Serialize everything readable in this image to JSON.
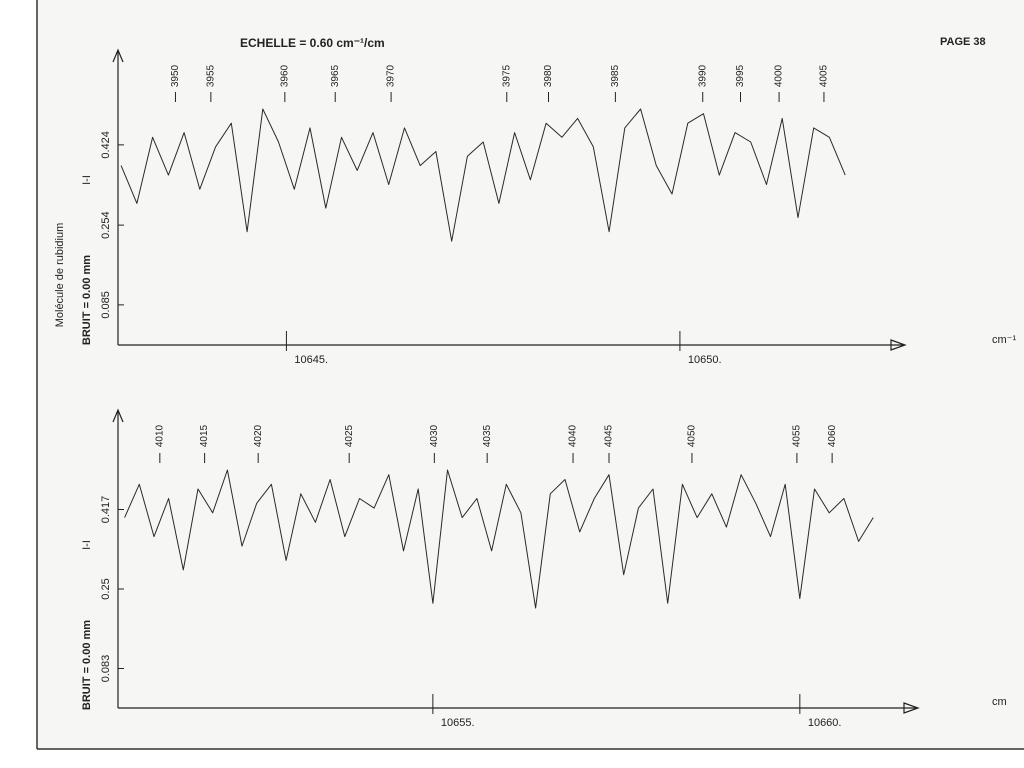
{
  "page": "PAGE 38",
  "chart_data": [
    {
      "type": "line",
      "title": "ECHELLE = 0.60 cm⁻¹/cm",
      "sublabel": "Molécule de rubidium",
      "ylabel": "BRUIT = 0.00 mm",
      "symbol": "I-I",
      "xlabel": "cm⁻¹",
      "color": "#2a2a2a",
      "x": [
        10642.9,
        10643.1,
        10643.3,
        10643.5,
        10643.7,
        10643.9,
        10644.1,
        10644.3,
        10644.5,
        10644.7,
        10644.9,
        10645.1,
        10645.3,
        10645.5,
        10645.7,
        10645.9,
        10646.1,
        10646.3,
        10646.5,
        10646.7,
        10646.9,
        10647.1,
        10647.3,
        10647.5,
        10647.7,
        10647.9,
        10648.1,
        10648.3,
        10648.5,
        10648.7,
        10648.9,
        10649.1,
        10649.3,
        10649.5,
        10649.7,
        10649.9,
        10650.1,
        10650.3,
        10650.5,
        10650.7,
        10650.9,
        10651.1,
        10651.3,
        10651.5,
        10651.7,
        10651.9,
        10652.1
      ],
      "values": [
        0.38,
        0.3,
        0.44,
        0.36,
        0.45,
        0.33,
        0.42,
        0.47,
        0.24,
        0.5,
        0.43,
        0.33,
        0.46,
        0.29,
        0.44,
        0.37,
        0.45,
        0.34,
        0.46,
        0.38,
        0.41,
        0.22,
        0.4,
        0.43,
        0.3,
        0.45,
        0.35,
        0.47,
        0.44,
        0.48,
        0.42,
        0.24,
        0.46,
        0.5,
        0.38,
        0.32,
        0.47,
        0.49,
        0.36,
        0.45,
        0.43,
        0.34,
        0.48,
        0.27,
        0.46,
        0.44,
        0.36
      ],
      "xlim": [
        10642.86,
        10652.86
      ],
      "ylim": [
        0.0,
        0.625
      ],
      "xticks": [
        {
          "value": 10645,
          "label": "10645."
        },
        {
          "value": 10650,
          "label": "10650."
        }
      ],
      "yticks": [
        0.085,
        0.254,
        0.424
      ],
      "line_labels": [
        {
          "x": 10643.59,
          "label": "3950"
        },
        {
          "x": 10644.04,
          "label": "3955"
        },
        {
          "x": 10644.98,
          "label": "3960"
        },
        {
          "x": 10645.62,
          "label": "3965"
        },
        {
          "x": 10646.33,
          "label": "3970"
        },
        {
          "x": 10647.8,
          "label": "3975"
        },
        {
          "x": 10648.33,
          "label": "3980"
        },
        {
          "x": 10649.18,
          "label": "3985"
        },
        {
          "x": 10650.29,
          "label": "3990"
        },
        {
          "x": 10650.77,
          "label": "3995"
        },
        {
          "x": 10651.26,
          "label": "4000"
        },
        {
          "x": 10651.83,
          "label": "4005"
        }
      ]
    },
    {
      "type": "line",
      "ylabel": "BRUIT = 0.00 mm",
      "symbol": "I-I",
      "xlabel": "cm",
      "color": "#2a2a2a",
      "x": [
        10650.8,
        10651.0,
        10651.2,
        10651.4,
        10651.6,
        10651.8,
        10652.0,
        10652.2,
        10652.4,
        10652.6,
        10652.8,
        10653.0,
        10653.2,
        10653.4,
        10653.6,
        10653.8,
        10654.0,
        10654.2,
        10654.4,
        10654.6,
        10654.8,
        10655.0,
        10655.2,
        10655.4,
        10655.6,
        10655.8,
        10656.0,
        10656.2,
        10656.4,
        10656.6,
        10656.8,
        10657.0,
        10657.2,
        10657.4,
        10657.6,
        10657.8,
        10658.0,
        10658.2,
        10658.4,
        10658.6,
        10658.8,
        10659.0,
        10659.2,
        10659.4,
        10659.6,
        10659.8,
        10660.0,
        10660.2,
        10660.4,
        10660.6,
        10660.8,
        10661.0
      ],
      "values": [
        0.4,
        0.47,
        0.36,
        0.44,
        0.29,
        0.46,
        0.41,
        0.5,
        0.34,
        0.43,
        0.47,
        0.31,
        0.45,
        0.39,
        0.48,
        0.36,
        0.44,
        0.42,
        0.49,
        0.33,
        0.46,
        0.22,
        0.5,
        0.4,
        0.44,
        0.33,
        0.47,
        0.41,
        0.21,
        0.45,
        0.48,
        0.37,
        0.44,
        0.49,
        0.28,
        0.42,
        0.46,
        0.22,
        0.47,
        0.4,
        0.45,
        0.38,
        0.49,
        0.43,
        0.36,
        0.47,
        0.23,
        0.46,
        0.41,
        0.44,
        0.35,
        0.4
      ],
      "xlim": [
        10650.71,
        10661.61
      ],
      "ylim": [
        0.0,
        0.626
      ],
      "xticks": [
        {
          "value": 10655,
          "label": "10655."
        },
        {
          "value": 10660,
          "label": "10660."
        }
      ],
      "yticks": [
        0.083,
        0.25,
        0.417
      ],
      "line_labels": [
        {
          "x": 10651.28,
          "label": "4010"
        },
        {
          "x": 10651.89,
          "label": "4015"
        },
        {
          "x": 10652.62,
          "label": "4020"
        },
        {
          "x": 10653.86,
          "label": "4025"
        },
        {
          "x": 10655.02,
          "label": "4030"
        },
        {
          "x": 10655.74,
          "label": "4035"
        },
        {
          "x": 10656.91,
          "label": "4040"
        },
        {
          "x": 10657.4,
          "label": "4045"
        },
        {
          "x": 10658.53,
          "label": "4050"
        },
        {
          "x": 10659.96,
          "label": "4055"
        },
        {
          "x": 10660.44,
          "label": "4060"
        }
      ]
    }
  ]
}
